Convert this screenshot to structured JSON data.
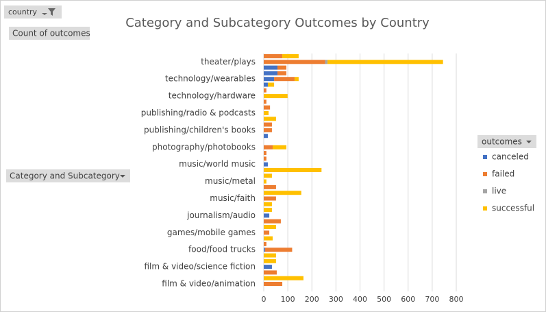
{
  "pivot": {
    "report_filter": "country",
    "values_field": "Count of outcomes",
    "row_field": "Category and Subcategory",
    "legend_field": "outcomes"
  },
  "chart_data": {
    "type": "bar",
    "orientation": "horizontal",
    "stacked": true,
    "title": "Category and Subcategory Outcomes by Country",
    "categories": [
      "film & video/animation",
      null,
      null,
      "film & video/science fiction",
      null,
      null,
      "food/food trucks",
      null,
      null,
      "games/mobile games",
      null,
      null,
      "journalism/audio",
      null,
      null,
      "music/faith",
      null,
      null,
      "music/metal",
      null,
      null,
      "music/world music",
      null,
      null,
      "photography/photobooks",
      null,
      null,
      "publishing/children's books",
      null,
      null,
      "publishing/radio & podcasts",
      null,
      null,
      "technology/hardware",
      null,
      null,
      "technology/wearables",
      null,
      null,
      "theater/plays",
      null
    ],
    "series": [
      {
        "name": "canceled",
        "color": "#4472c4",
        "values": [
          0,
          0,
          0,
          34,
          0,
          0,
          5,
          0,
          0,
          0,
          0,
          0,
          23,
          0,
          0,
          0,
          0,
          0,
          0,
          0,
          0,
          17,
          0,
          0,
          0,
          0,
          17,
          0,
          0,
          0,
          0,
          0,
          0,
          0,
          0,
          17,
          43,
          57,
          57,
          0,
          0
        ]
      },
      {
        "name": "failed",
        "color": "#ed7d31",
        "values": [
          77,
          0,
          54,
          0,
          0,
          0,
          113,
          11,
          0,
          23,
          0,
          71,
          0,
          0,
          0,
          51,
          0,
          51,
          0,
          0,
          0,
          0,
          11,
          11,
          37,
          0,
          0,
          34,
          34,
          0,
          0,
          26,
          11,
          0,
          11,
          0,
          85,
          37,
          37,
          255,
          77
        ]
      },
      {
        "name": "live",
        "color": "#a5a5a5",
        "values": [
          0,
          0,
          0,
          0,
          0,
          0,
          0,
          0,
          0,
          0,
          0,
          0,
          0,
          0,
          0,
          0,
          0,
          0,
          0,
          0,
          0,
          0,
          0,
          0,
          0,
          0,
          0,
          0,
          0,
          0,
          0,
          0,
          0,
          0,
          0,
          0,
          0,
          0,
          0,
          10,
          0
        ]
      },
      {
        "name": "successful",
        "color": "#ffc000",
        "values": [
          0,
          165,
          0,
          0,
          51,
          51,
          0,
          0,
          37,
          0,
          51,
          0,
          0,
          34,
          34,
          0,
          156,
          0,
          11,
          34,
          240,
          0,
          0,
          0,
          57,
          0,
          0,
          0,
          0,
          51,
          20,
          0,
          0,
          99,
          0,
          26,
          17,
          0,
          0,
          480,
          68
        ]
      }
    ],
    "xlim": [
      0,
      800
    ],
    "xticks": [
      0,
      100,
      200,
      300,
      400,
      500,
      600,
      700,
      800
    ],
    "grid": true,
    "legend": "right"
  }
}
